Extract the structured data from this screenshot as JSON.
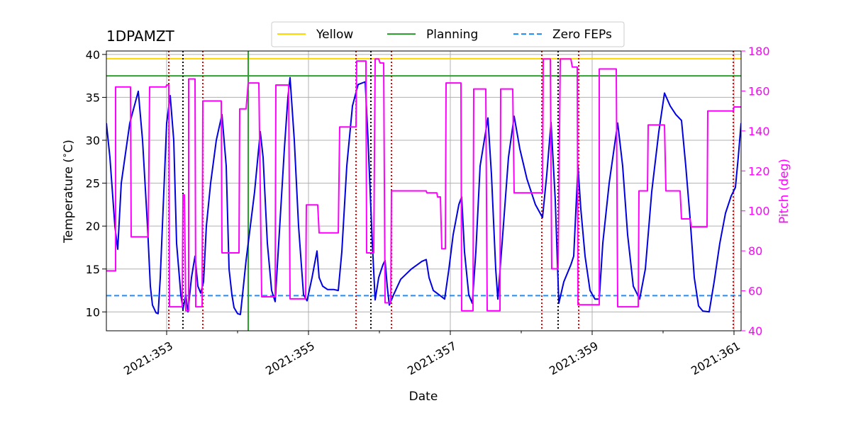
{
  "chart_data": {
    "type": "line",
    "title": "1DPAMZT",
    "xlabel": "Date",
    "ylabel": "Temperature ($^\\circ$C)",
    "ylabel_display": "Temperature (",
    "ylabel_degree": "∘",
    "ylabel_unit": "C)",
    "y2label": "Pitch (deg)",
    "xlim": [
      352.15,
      361.1
    ],
    "ylim": [
      7.8,
      40.4
    ],
    "y2lim": [
      40,
      180
    ],
    "x_ticks": [
      {
        "value": 353,
        "label": "2021:353"
      },
      {
        "value": 355,
        "label": "2021:355"
      },
      {
        "value": 357,
        "label": "2021:357"
      },
      {
        "value": 359,
        "label": "2021:359"
      },
      {
        "value": 361,
        "label": "2021:361"
      }
    ],
    "y_ticks": [
      10,
      15,
      20,
      25,
      30,
      35,
      40
    ],
    "y2_ticks": [
      40,
      60,
      80,
      100,
      120,
      140,
      160,
      180
    ],
    "legend": {
      "placement": "top-center",
      "entries": [
        {
          "label": "Yellow",
          "color": "#ffd700",
          "style": "solid"
        },
        {
          "label": "Planning",
          "color": "#2ca02c",
          "style": "solid"
        },
        {
          "label": "Zero FEPs",
          "color": "#1f8fff",
          "style": "dashed"
        }
      ]
    },
    "hlines": [
      {
        "name": "yellow-limit-line",
        "value": 39.5,
        "color": "#ffd700",
        "style": "solid"
      },
      {
        "name": "planning-limit-line",
        "value": 37.5,
        "color": "#2ca02c",
        "style": "solid"
      },
      {
        "name": "zero-feps-line",
        "value": 11.9,
        "color": "#1f8fff",
        "style": "dashed"
      }
    ],
    "vlines": [
      {
        "x": 353.03,
        "color": "#e00000",
        "style": "dotted"
      },
      {
        "x": 353.23,
        "color": "#000000",
        "style": "dotted"
      },
      {
        "x": 353.51,
        "color": "#e00000",
        "style": "dotted"
      },
      {
        "x": 354.15,
        "color": "#2ca02c",
        "style": "solid"
      },
      {
        "x": 355.67,
        "color": "#e00000",
        "style": "dotted"
      },
      {
        "x": 355.88,
        "color": "#000000",
        "style": "dotted"
      },
      {
        "x": 356.17,
        "color": "#e00000",
        "style": "dotted"
      },
      {
        "x": 358.29,
        "color": "#e00000",
        "style": "dotted"
      },
      {
        "x": 358.52,
        "color": "#000000",
        "style": "dotted"
      },
      {
        "x": 358.81,
        "color": "#e00000",
        "style": "dotted"
      },
      {
        "x": 360.99,
        "color": "#e00000",
        "style": "dotted"
      }
    ],
    "series": [
      {
        "name": "Temperature",
        "axis": "left",
        "color": "#0000e0",
        "points": [
          [
            352.15,
            32.0
          ],
          [
            352.2,
            28.0
          ],
          [
            352.27,
            20.0
          ],
          [
            352.31,
            17.3
          ],
          [
            352.36,
            25.0
          ],
          [
            352.48,
            32.0
          ],
          [
            352.6,
            35.7
          ],
          [
            352.66,
            30.0
          ],
          [
            352.73,
            20.0
          ],
          [
            352.77,
            13.0
          ],
          [
            352.8,
            10.8
          ],
          [
            352.85,
            9.9
          ],
          [
            352.88,
            9.8
          ],
          [
            352.91,
            14.0
          ],
          [
            352.96,
            24.0
          ],
          [
            353.0,
            32.0
          ],
          [
            353.05,
            35.2
          ],
          [
            353.1,
            30.0
          ],
          [
            353.14,
            18.0
          ],
          [
            353.2,
            12.0
          ],
          [
            353.23,
            10.3
          ],
          [
            353.27,
            12.0
          ],
          [
            353.3,
            10.0
          ],
          [
            353.35,
            14.0
          ],
          [
            353.4,
            16.5
          ],
          [
            353.44,
            13.0
          ],
          [
            353.48,
            12.2
          ],
          [
            353.52,
            13.5
          ],
          [
            353.56,
            20.0
          ],
          [
            353.62,
            25.0
          ],
          [
            353.7,
            30.0
          ],
          [
            353.78,
            33.0
          ],
          [
            353.84,
            27.0
          ],
          [
            353.88,
            15.0
          ],
          [
            353.92,
            12.0
          ],
          [
            353.95,
            10.5
          ],
          [
            354.0,
            9.8
          ],
          [
            354.04,
            9.7
          ],
          [
            354.07,
            12.0
          ],
          [
            354.12,
            16.0
          ],
          [
            354.18,
            20.0
          ],
          [
            354.24,
            24.0
          ],
          [
            354.32,
            31.0
          ],
          [
            354.36,
            28.0
          ],
          [
            354.42,
            18.0
          ],
          [
            354.48,
            12.5
          ],
          [
            354.53,
            11.2
          ],
          [
            354.58,
            18.0
          ],
          [
            354.66,
            29.0
          ],
          [
            354.71,
            35.0
          ],
          [
            354.74,
            37.3
          ],
          [
            354.8,
            30.0
          ],
          [
            354.86,
            20.0
          ],
          [
            354.93,
            12.0
          ],
          [
            354.98,
            11.3
          ],
          [
            355.05,
            14.0
          ],
          [
            355.12,
            17.1
          ],
          [
            355.15,
            14.0
          ],
          [
            355.2,
            13.0
          ],
          [
            355.27,
            12.6
          ],
          [
            355.36,
            12.6
          ],
          [
            355.42,
            12.5
          ],
          [
            355.47,
            17.0
          ],
          [
            355.54,
            27.0
          ],
          [
            355.62,
            34.0
          ],
          [
            355.7,
            36.5
          ],
          [
            355.8,
            36.8
          ],
          [
            355.84,
            30.0
          ],
          [
            355.9,
            18.0
          ],
          [
            355.94,
            11.4
          ],
          [
            355.99,
            14.0
          ],
          [
            356.05,
            15.5
          ],
          [
            356.08,
            16.0
          ],
          [
            356.11,
            13.0
          ],
          [
            356.14,
            10.8
          ],
          [
            356.2,
            12.0
          ],
          [
            356.3,
            13.8
          ],
          [
            356.45,
            15.0
          ],
          [
            356.6,
            15.9
          ],
          [
            356.66,
            16.1
          ],
          [
            356.7,
            14.0
          ],
          [
            356.76,
            12.5
          ],
          [
            356.84,
            12.0
          ],
          [
            356.92,
            11.5
          ],
          [
            356.98,
            15.0
          ],
          [
            357.04,
            19.0
          ],
          [
            357.12,
            22.5
          ],
          [
            357.16,
            23.4
          ],
          [
            357.2,
            17.0
          ],
          [
            357.26,
            12.0
          ],
          [
            357.31,
            11.0
          ],
          [
            357.36,
            17.0
          ],
          [
            357.42,
            27.0
          ],
          [
            357.53,
            32.6
          ],
          [
            357.58,
            26.0
          ],
          [
            357.64,
            15.0
          ],
          [
            357.67,
            11.5
          ],
          [
            357.73,
            18.0
          ],
          [
            357.82,
            28.0
          ],
          [
            357.9,
            32.8
          ],
          [
            357.98,
            29.0
          ],
          [
            358.08,
            25.5
          ],
          [
            358.2,
            22.5
          ],
          [
            358.3,
            21.0
          ],
          [
            358.36,
            26.0
          ],
          [
            358.42,
            32.1
          ],
          [
            358.48,
            23.0
          ],
          [
            358.53,
            11.0
          ],
          [
            358.6,
            13.5
          ],
          [
            358.7,
            15.5
          ],
          [
            358.74,
            16.5
          ],
          [
            358.8,
            27.0
          ],
          [
            358.84,
            22.0
          ],
          [
            358.9,
            16.5
          ],
          [
            358.97,
            12.5
          ],
          [
            359.04,
            11.5
          ],
          [
            359.1,
            11.5
          ],
          [
            359.15,
            18.0
          ],
          [
            359.24,
            25.0
          ],
          [
            359.36,
            32.0
          ],
          [
            359.43,
            27.0
          ],
          [
            359.5,
            19.0
          ],
          [
            359.58,
            13.0
          ],
          [
            359.67,
            11.5
          ],
          [
            359.75,
            15.0
          ],
          [
            359.84,
            24.0
          ],
          [
            359.94,
            31.0
          ],
          [
            360.02,
            35.5
          ],
          [
            360.1,
            34.0
          ],
          [
            360.18,
            33.0
          ],
          [
            360.26,
            32.3
          ],
          [
            360.32,
            27.0
          ],
          [
            360.38,
            21.0
          ],
          [
            360.44,
            14.0
          ],
          [
            360.5,
            10.7
          ],
          [
            360.56,
            10.1
          ],
          [
            360.65,
            10.0
          ],
          [
            360.72,
            13.5
          ],
          [
            360.8,
            18.0
          ],
          [
            360.88,
            21.5
          ],
          [
            360.96,
            23.5
          ],
          [
            361.02,
            24.5
          ],
          [
            361.06,
            28.0
          ],
          [
            361.1,
            32.0
          ]
        ]
      },
      {
        "name": "Pitch",
        "axis": "right",
        "color": "#ff00ff",
        "points": [
          [
            352.15,
            70
          ],
          [
            352.28,
            70
          ],
          [
            352.28,
            162
          ],
          [
            352.49,
            162
          ],
          [
            352.5,
            87
          ],
          [
            352.74,
            87
          ],
          [
            352.76,
            162
          ],
          [
            352.99,
            162
          ],
          [
            353.0,
            163
          ],
          [
            353.03,
            163
          ],
          [
            353.04,
            52
          ],
          [
            353.22,
            52
          ],
          [
            353.23,
            108
          ],
          [
            353.25,
            108
          ],
          [
            353.27,
            50
          ],
          [
            353.31,
            50
          ],
          [
            353.31,
            166
          ],
          [
            353.4,
            166
          ],
          [
            353.41,
            52
          ],
          [
            353.5,
            52
          ],
          [
            353.51,
            155
          ],
          [
            353.77,
            155
          ],
          [
            353.78,
            79
          ],
          [
            354.02,
            79
          ],
          [
            354.03,
            151
          ],
          [
            354.12,
            151
          ],
          [
            354.15,
            164
          ],
          [
            354.3,
            164
          ],
          [
            354.34,
            57
          ],
          [
            354.53,
            57
          ],
          [
            354.54,
            163
          ],
          [
            354.72,
            163
          ],
          [
            354.74,
            56
          ],
          [
            354.96,
            56
          ],
          [
            354.97,
            103
          ],
          [
            355.13,
            103
          ],
          [
            355.15,
            89
          ],
          [
            355.42,
            89
          ],
          [
            355.44,
            142
          ],
          [
            355.67,
            142
          ],
          [
            355.68,
            175
          ],
          [
            355.81,
            175
          ],
          [
            355.82,
            79
          ],
          [
            355.92,
            79
          ],
          [
            355.94,
            176
          ],
          [
            355.99,
            176
          ],
          [
            356.01,
            174
          ],
          [
            356.06,
            174
          ],
          [
            356.08,
            54
          ],
          [
            356.16,
            54
          ],
          [
            356.17,
            110
          ],
          [
            356.66,
            110
          ],
          [
            356.67,
            109
          ],
          [
            356.81,
            109
          ],
          [
            356.82,
            107
          ],
          [
            356.86,
            107
          ],
          [
            356.88,
            81
          ],
          [
            356.93,
            81
          ],
          [
            356.94,
            164
          ],
          [
            357.15,
            164
          ],
          [
            357.16,
            50
          ],
          [
            357.32,
            50
          ],
          [
            357.33,
            161
          ],
          [
            357.5,
            161
          ],
          [
            357.52,
            50
          ],
          [
            357.7,
            50
          ],
          [
            357.71,
            161
          ],
          [
            357.88,
            161
          ],
          [
            357.9,
            109
          ],
          [
            358.3,
            109
          ],
          [
            358.31,
            176
          ],
          [
            358.41,
            176
          ],
          [
            358.43,
            71
          ],
          [
            358.52,
            71
          ],
          [
            358.55,
            176
          ],
          [
            358.7,
            176
          ],
          [
            358.72,
            172
          ],
          [
            358.79,
            172
          ],
          [
            358.8,
            53
          ],
          [
            359.1,
            53
          ],
          [
            359.1,
            171
          ],
          [
            359.34,
            171
          ],
          [
            359.36,
            52
          ],
          [
            359.65,
            52
          ],
          [
            359.66,
            110
          ],
          [
            359.78,
            110
          ],
          [
            359.79,
            143
          ],
          [
            360.02,
            143
          ],
          [
            360.04,
            110
          ],
          [
            360.24,
            110
          ],
          [
            360.26,
            96
          ],
          [
            360.38,
            96
          ],
          [
            360.4,
            92
          ],
          [
            360.62,
            92
          ],
          [
            360.63,
            150
          ],
          [
            360.99,
            150
          ],
          [
            361.0,
            152
          ],
          [
            361.1,
            152
          ]
        ]
      }
    ]
  }
}
